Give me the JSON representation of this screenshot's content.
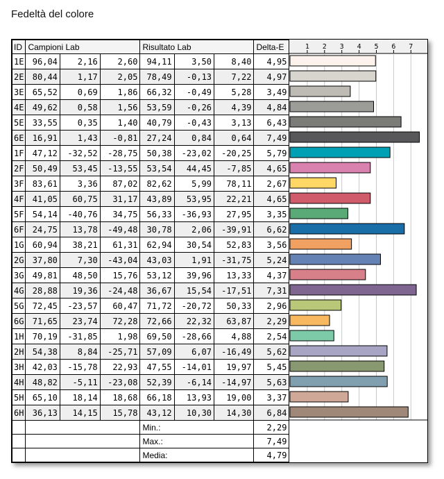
{
  "title": "Fedeltà del colore",
  "headers": {
    "id": "ID",
    "samples": "Campioni Lab",
    "result": "Risultato Lab",
    "delta": "Delta-E"
  },
  "rows": [
    [
      "1E",
      "96,04",
      "2,16",
      "2,60",
      "94,11",
      "3,50",
      "8,40",
      "4,95"
    ],
    [
      "2E",
      "80,44",
      "1,17",
      "2,05",
      "78,49",
      "-0,13",
      "7,22",
      "4,97"
    ],
    [
      "3E",
      "65,52",
      "0,69",
      "1,86",
      "66,32",
      "-0,49",
      "5,28",
      "3,49"
    ],
    [
      "4E",
      "49,62",
      "0,58",
      "1,56",
      "53,59",
      "-0,26",
      "4,39",
      "4,84"
    ],
    [
      "5E",
      "33,55",
      "0,35",
      "1,40",
      "40,79",
      "-0,43",
      "3,13",
      "6,43"
    ],
    [
      "6E",
      "16,91",
      "1,43",
      "-0,81",
      "27,24",
      "0,84",
      "0,64",
      "7,49"
    ],
    [
      "1F",
      "47,12",
      "-32,52",
      "-28,75",
      "50,38",
      "-23,02",
      "-20,25",
      "5,79"
    ],
    [
      "2F",
      "50,49",
      "53,45",
      "-13,55",
      "53,54",
      "44,45",
      "-7,85",
      "4,65"
    ],
    [
      "3F",
      "83,61",
      "3,36",
      "87,02",
      "82,62",
      "5,99",
      "78,11",
      "2,67"
    ],
    [
      "4F",
      "41,05",
      "60,75",
      "31,17",
      "43,89",
      "53,95",
      "22,21",
      "4,65"
    ],
    [
      "5F",
      "54,14",
      "-40,76",
      "34,75",
      "56,33",
      "-36,93",
      "27,95",
      "3,35"
    ],
    [
      "6F",
      "24,75",
      "13,78",
      "-49,48",
      "30,78",
      "2,06",
      "-39,91",
      "6,62"
    ],
    [
      "1G",
      "60,94",
      "38,21",
      "61,31",
      "62,94",
      "30,54",
      "52,83",
      "3,56"
    ],
    [
      "2G",
      "37,80",
      "7,30",
      "-43,04",
      "43,03",
      "1,91",
      "-31,75",
      "5,24"
    ],
    [
      "3G",
      "49,81",
      "48,50",
      "15,76",
      "53,12",
      "39,96",
      "13,33",
      "4,37"
    ],
    [
      "4G",
      "28,88",
      "19,36",
      "-24,48",
      "36,67",
      "15,54",
      "-17,51",
      "7,31"
    ],
    [
      "5G",
      "72,45",
      "-23,57",
      "60,47",
      "71,72",
      "-20,72",
      "50,33",
      "2,96"
    ],
    [
      "6G",
      "71,65",
      "23,74",
      "72,28",
      "72,66",
      "22,32",
      "63,87",
      "2,29"
    ],
    [
      "1H",
      "70,19",
      "-31,85",
      "1,98",
      "69,50",
      "-28,66",
      "4,88",
      "2,54"
    ],
    [
      "2H",
      "54,38",
      "8,84",
      "-25,71",
      "57,09",
      "6,07",
      "-16,49",
      "5,62"
    ],
    [
      "3H",
      "42,03",
      "-15,78",
      "22,93",
      "47,55",
      "-14,01",
      "19,97",
      "5,45"
    ],
    [
      "4H",
      "48,82",
      "-5,11",
      "-23,08",
      "52,39",
      "-6,14",
      "-14,97",
      "5,63"
    ],
    [
      "5H",
      "65,10",
      "18,14",
      "18,68",
      "66,18",
      "13,93",
      "19,00",
      "3,37"
    ],
    [
      "6H",
      "36,13",
      "14,15",
      "15,78",
      "43,12",
      "10,30",
      "14,30",
      "6,84"
    ]
  ],
  "summary": [
    {
      "label": "Min.:",
      "value": "2,29"
    },
    {
      "label": "Max.:",
      "value": "7,49"
    },
    {
      "label": "Media:",
      "value": "4,79"
    }
  ],
  "chart_data": {
    "type": "bar",
    "orientation": "horizontal",
    "grid": true,
    "categories": [
      "1E",
      "2E",
      "3E",
      "4E",
      "5E",
      "6E",
      "1F",
      "2F",
      "3F",
      "4F",
      "5F",
      "6F",
      "1G",
      "2G",
      "3G",
      "4G",
      "5G",
      "6G",
      "1H",
      "2H",
      "3H",
      "4H",
      "5H",
      "6H"
    ],
    "values": [
      4.95,
      4.97,
      3.49,
      4.84,
      6.43,
      7.49,
      5.79,
      4.65,
      2.67,
      4.65,
      3.35,
      6.62,
      3.56,
      5.24,
      4.37,
      7.31,
      2.96,
      2.29,
      2.54,
      5.62,
      5.45,
      5.63,
      3.37,
      6.84
    ],
    "colors": [
      "#fdf3ec",
      "#d8d4ce",
      "#bebbb4",
      "#9c9c98",
      "#7b7b78",
      "#58585a",
      "#00a0b4",
      "#d982b0",
      "#ffd764",
      "#d05b6a",
      "#5aaa78",
      "#1a6ea8",
      "#f0a060",
      "#6482b4",
      "#d8808a",
      "#7e6690",
      "#b8c878",
      "#f8b860",
      "#7ccaa8",
      "#a8a4c4",
      "#889870",
      "#80a0b0",
      "#d0a898",
      "#a08878"
    ],
    "xticks": [
      "1",
      "2",
      "3",
      "4",
      "5",
      "6",
      "7"
    ],
    "xlim": [
      0,
      8
    ]
  }
}
